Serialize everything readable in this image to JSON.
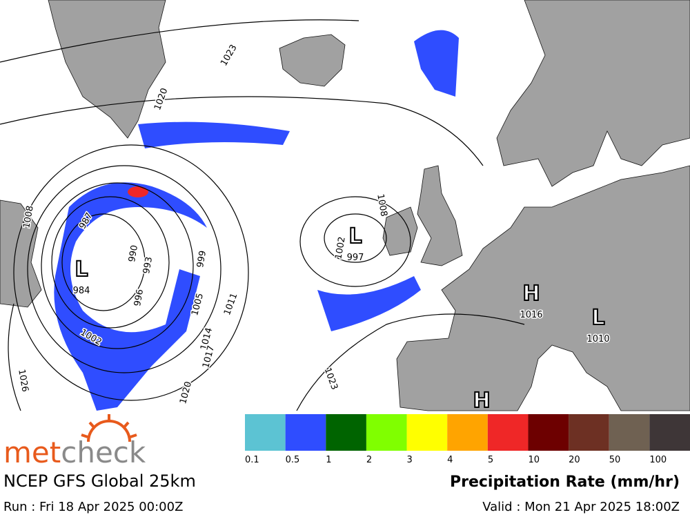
{
  "map": {
    "pressure_centres": [
      {
        "symbol": "L",
        "value": "984"
      },
      {
        "symbol": "L",
        "value": "997"
      },
      {
        "symbol": "H",
        "value": "1016"
      },
      {
        "symbol": "L",
        "value": "1010"
      },
      {
        "symbol": "H",
        "value": null
      }
    ],
    "isobar_labels": [
      "1023",
      "1020",
      "1008",
      "987",
      "990",
      "993",
      "996",
      "999",
      "1002",
      "1005",
      "1011",
      "1014",
      "1017",
      "1020",
      "1026",
      "1023",
      "1008",
      "1002"
    ]
  },
  "legend": {
    "title": "Precipitation Rate (mm/hr)",
    "ticks": [
      0.1,
      0.5,
      1,
      2,
      3,
      4,
      5,
      10,
      20,
      50,
      100
    ],
    "colors": [
      "#5cc3d3",
      "#2f4dff",
      "#006400",
      "#80ff00",
      "#ffff00",
      "#ffa400",
      "#ef2727",
      "#6d0000",
      "#6d3023",
      "#6f6152",
      "#3e3637"
    ]
  },
  "footer": {
    "brand_part1": "met",
    "brand_part2": "check",
    "model": "NCEP GFS Global 25km",
    "run": "Run : Fri 18 Apr 2025 00:00Z",
    "valid": "Valid : Mon 21 Apr 2025 18:00Z"
  }
}
